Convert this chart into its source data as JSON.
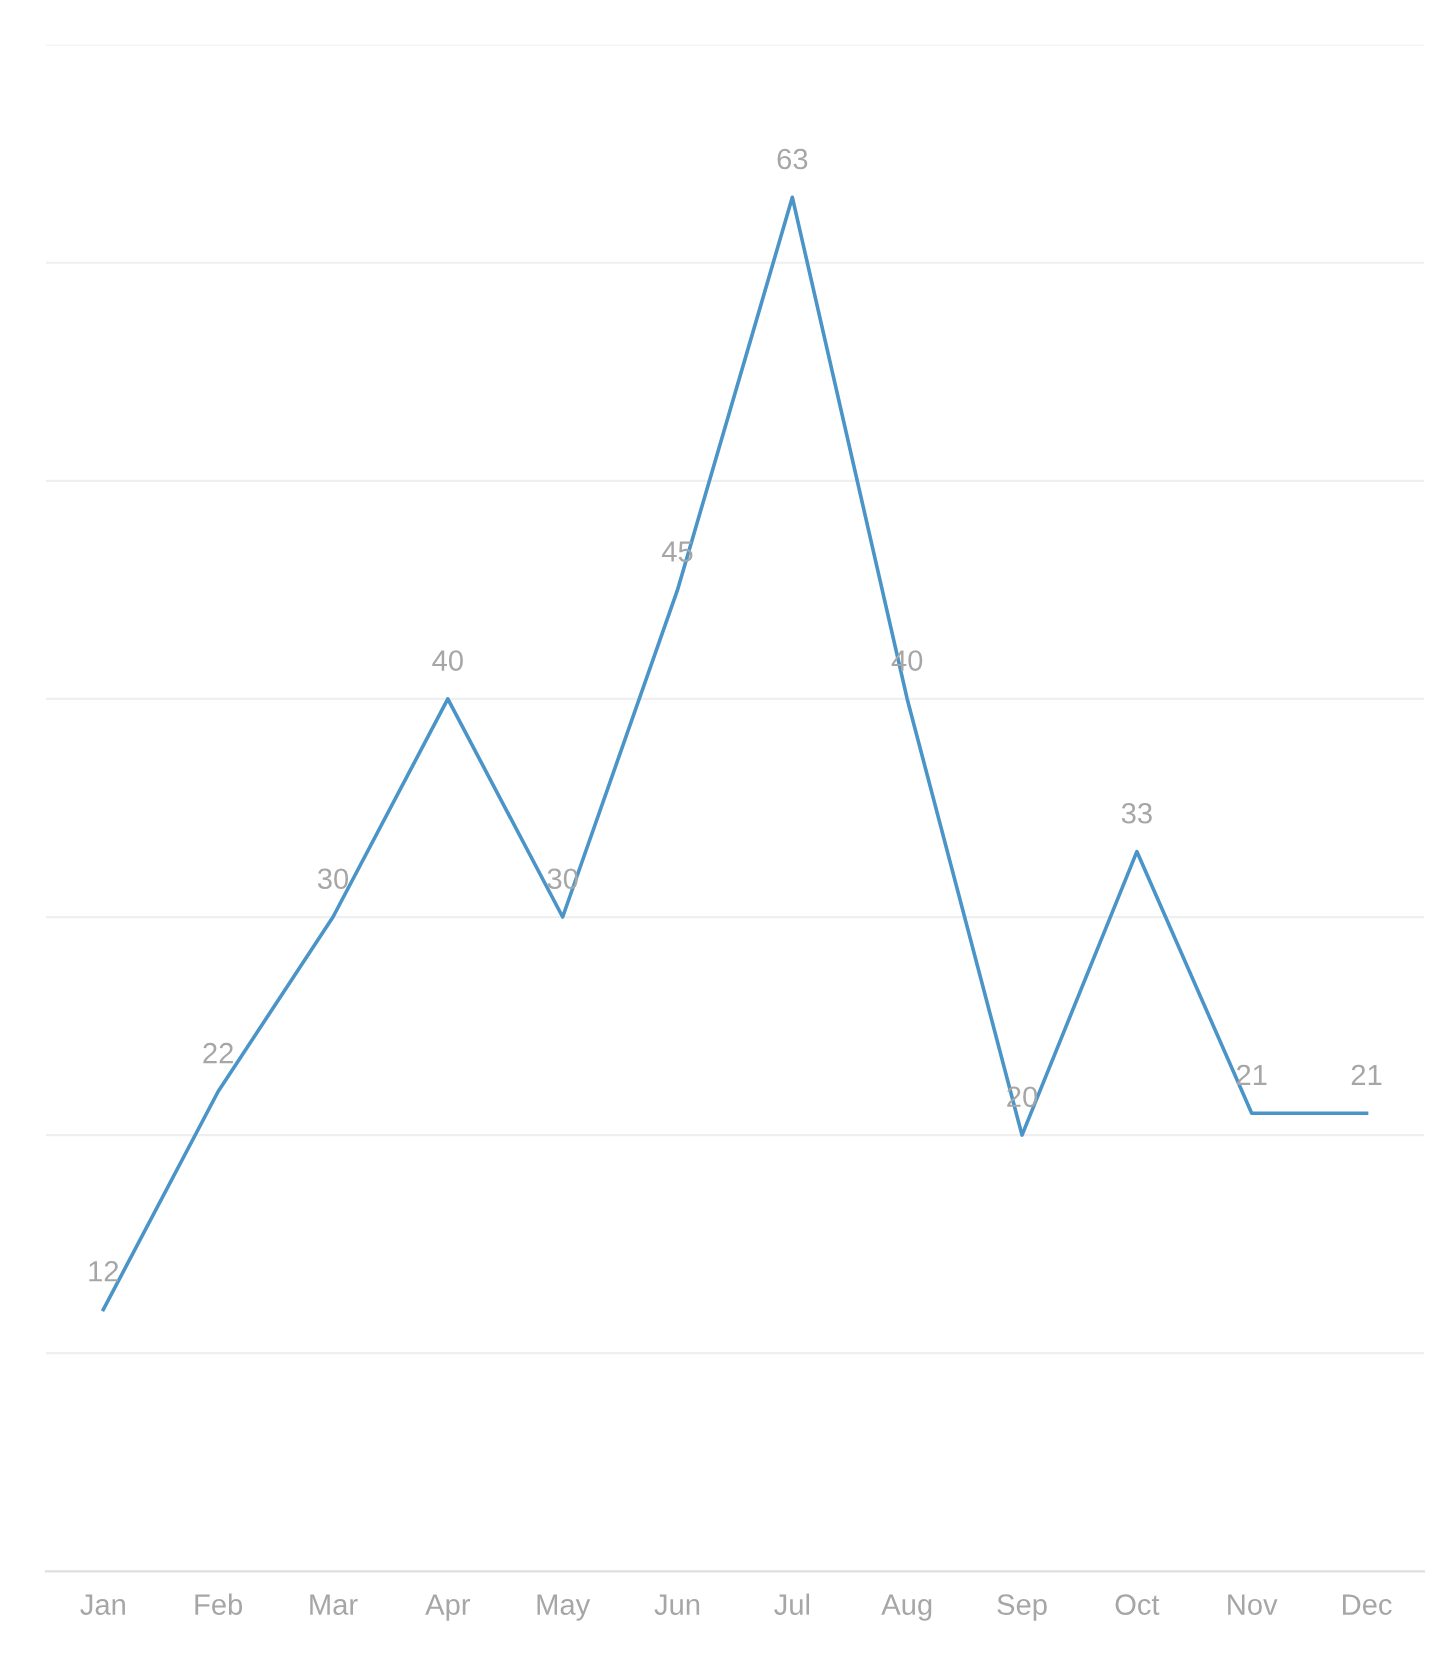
{
  "chart_data": {
    "type": "line",
    "categories": [
      "Jan",
      "Feb",
      "Mar",
      "Apr",
      "May",
      "Jun",
      "Jul",
      "Aug",
      "Sep",
      "Oct",
      "Nov",
      "Dec"
    ],
    "series": [
      {
        "color": "#4a94c8",
        "values": [
          12,
          22,
          30,
          40,
          30,
          45,
          63,
          40,
          20,
          33,
          21,
          21
        ]
      }
    ],
    "ylim": [
      0,
      70
    ],
    "yticks": [
      {
        "value": 0,
        "label": null
      },
      {
        "value": 10,
        "label": null
      },
      {
        "value": 20,
        "label": null
      },
      {
        "value": 30,
        "label": null
      },
      {
        "value": 40,
        "label": null
      },
      {
        "value": 50,
        "label": null
      },
      {
        "value": 60,
        "label": null
      },
      {
        "value": 70,
        "label": null
      }
    ],
    "tick_labels": "x",
    "grid": "y",
    "data_labels": true,
    "marker": "none",
    "line_style": "solid",
    "legend": false
  }
}
